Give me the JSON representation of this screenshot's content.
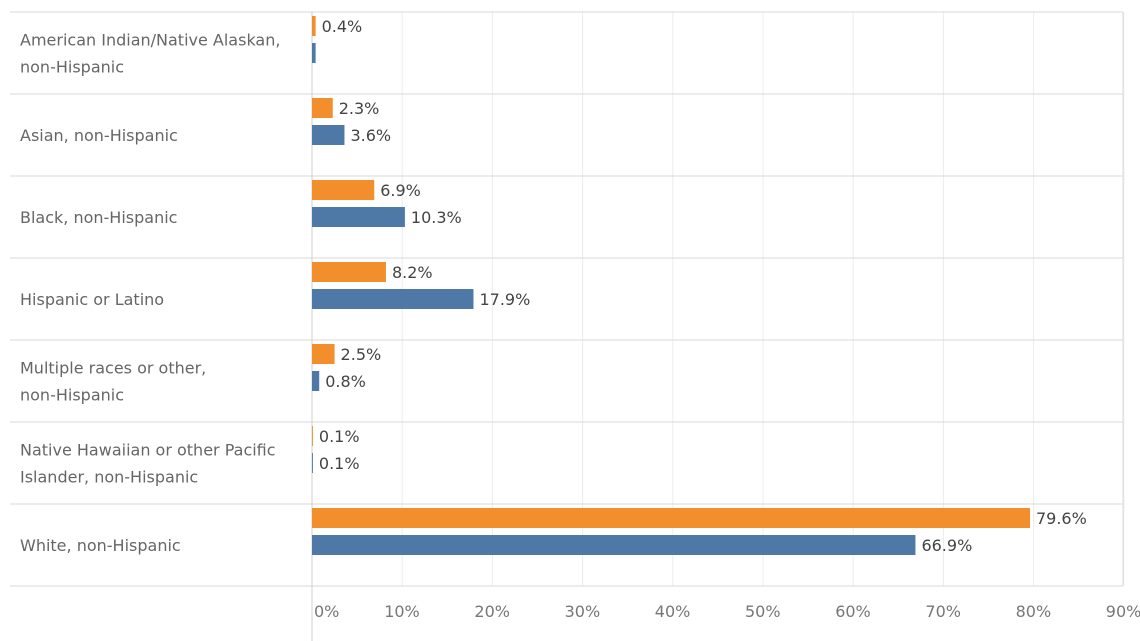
{
  "chart_data": {
    "type": "bar",
    "orientation": "horizontal",
    "categories": [
      [
        "American Indian/Native Alaskan,",
        "non-Hispanic"
      ],
      [
        "Asian, non-Hispanic"
      ],
      [
        "Black, non-Hispanic"
      ],
      [
        "Hispanic or Latino"
      ],
      [
        "Multiple races or other,",
        "non-Hispanic"
      ],
      [
        "Native Hawaiian or other Pacific",
        "Islander, non-Hispanic"
      ],
      [
        "White, non-Hispanic"
      ]
    ],
    "series": [
      {
        "color": "#f28e2b",
        "values": [
          0.4,
          2.3,
          6.9,
          8.2,
          2.5,
          0.1,
          79.6
        ],
        "labels": [
          "0.4%",
          "2.3%",
          "6.9%",
          "8.2%",
          "2.5%",
          "0.1%",
          "79.6%"
        ]
      },
      {
        "color": "#4e79a7",
        "values": [
          0.4,
          3.6,
          10.3,
          17.9,
          0.8,
          0.1,
          66.9
        ],
        "labels": [
          "",
          "3.6%",
          "10.3%",
          "17.9%",
          "0.8%",
          "0.1%",
          "66.9%"
        ]
      }
    ],
    "xlim": [
      0,
      90
    ],
    "xticks": [
      "0%",
      "10%",
      "20%",
      "30%",
      "40%",
      "50%",
      "60%",
      "70%",
      "80%",
      "90%"
    ],
    "xlabel": "",
    "ylabel": "",
    "title": "",
    "grid": true,
    "legend": "none"
  }
}
